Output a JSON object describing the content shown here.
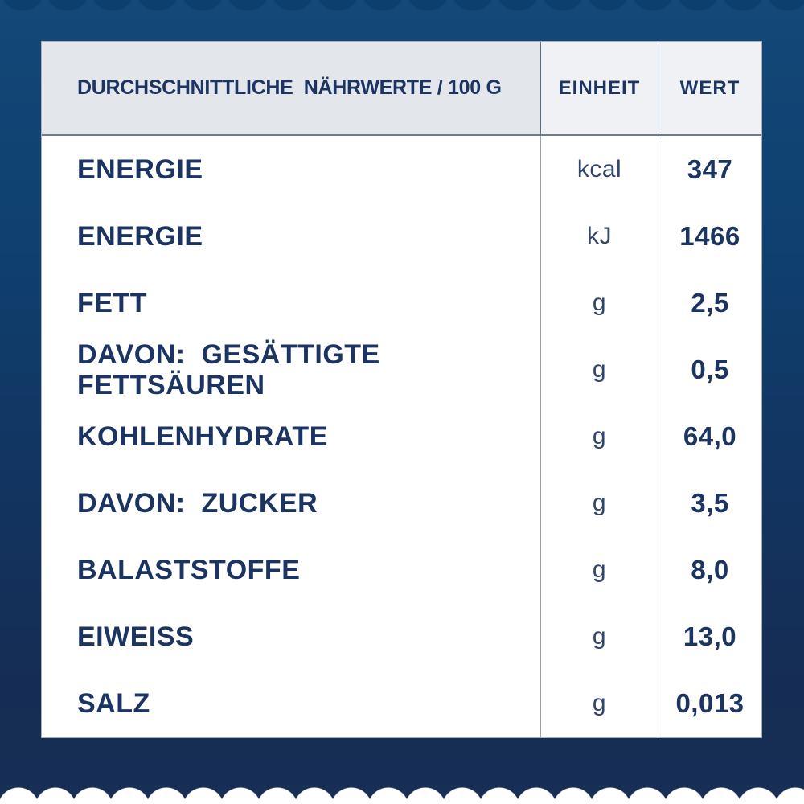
{
  "table": {
    "title": "DURCHSCHNITTLICHE  NÄHRWERTE / 100 G",
    "columns": {
      "unit": "EINHEIT",
      "value": "WERT"
    },
    "rows": [
      {
        "label": "ENERGIE",
        "unit": "kcal",
        "value": "347"
      },
      {
        "label": "ENERGIE",
        "unit": "kJ",
        "value": "1466"
      },
      {
        "label": "FETT",
        "unit": "g",
        "value": "2,5"
      },
      {
        "label": "DAVON:  GESÄTTIGTE\nFETTSÄUREN",
        "unit": "g",
        "value": "0,5"
      },
      {
        "label": "KOHLENHYDRATE",
        "unit": "g",
        "value": "64,0"
      },
      {
        "label": "DAVON:  ZUCKER",
        "unit": "g",
        "value": "3,5"
      },
      {
        "label": "BALASTSTOFFE",
        "unit": "g",
        "value": "8,0"
      },
      {
        "label": "EIWEISS",
        "unit": "g",
        "value": "13,0"
      },
      {
        "label": "SALZ",
        "unit": "g",
        "value": "0,013"
      }
    ]
  },
  "colors": {
    "text_navy": "#1b3462",
    "unit_text": "#32466d",
    "background_blue_top": "#134878",
    "background_blue_bottom": "#172e55",
    "top_trim_blue": "#0d3f6e",
    "header_left_bg": "#e3e6eb",
    "header_right_bg": "#eff1f5",
    "table_bg": "#ffffff",
    "grid_line": "#98a0af",
    "scallop_white": "#ffffff"
  }
}
